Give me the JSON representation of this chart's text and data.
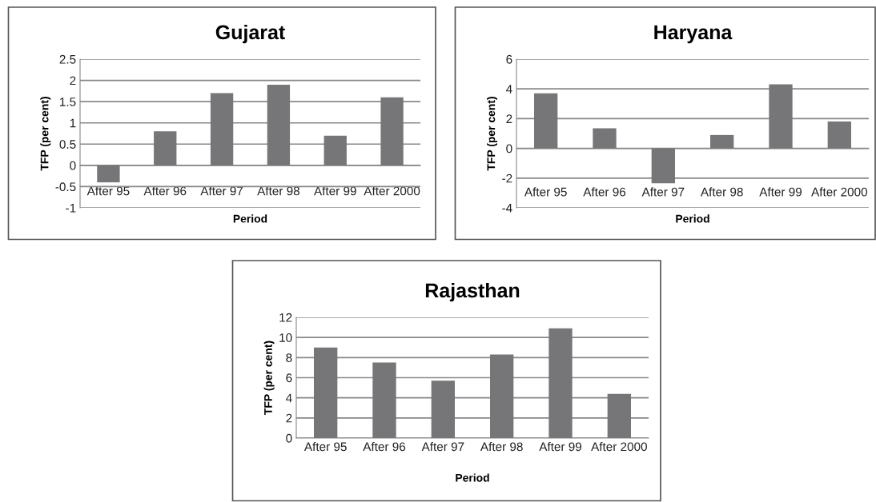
{
  "chart_data": [
    {
      "type": "bar",
      "title": "Gujarat",
      "xlabel": "Period",
      "ylabel": "TFP (per cent)",
      "categories": [
        "After 95",
        "After 96",
        "After 97",
        "After 98",
        "After 99",
        "After 2000"
      ],
      "values": [
        -0.4,
        0.8,
        1.7,
        1.9,
        0.7,
        1.6
      ],
      "color": "#767679",
      "ylim": [
        -1,
        2.5
      ],
      "yticks": [
        -1,
        -0.5,
        0,
        0.5,
        1,
        1.5,
        2,
        2.5
      ],
      "grid": "y"
    },
    {
      "type": "bar",
      "title": "Haryana",
      "xlabel": "Period",
      "ylabel": "TFP (per cent)",
      "categories": [
        "After 95",
        "After 96",
        "After 97",
        "After 98",
        "After 99",
        "After 2000"
      ],
      "values": [
        3.7,
        1.35,
        -2.35,
        0.9,
        4.3,
        1.8
      ],
      "color": "#767679",
      "ylim": [
        -4,
        6
      ],
      "yticks": [
        -4,
        -2,
        0,
        2,
        4,
        6
      ],
      "grid": "y"
    },
    {
      "type": "bar",
      "title": "Rajasthan",
      "xlabel": "Period",
      "ylabel": "TFP (per cent)",
      "categories": [
        "After 95",
        "After 96",
        "After 97",
        "After 98",
        "After 99",
        "After 2000"
      ],
      "values": [
        9.0,
        7.5,
        5.7,
        8.3,
        10.9,
        4.4
      ],
      "color": "#767679",
      "ylim": [
        0,
        12
      ],
      "yticks": [
        0,
        2,
        4,
        6,
        8,
        10,
        12
      ],
      "grid": "y"
    }
  ]
}
